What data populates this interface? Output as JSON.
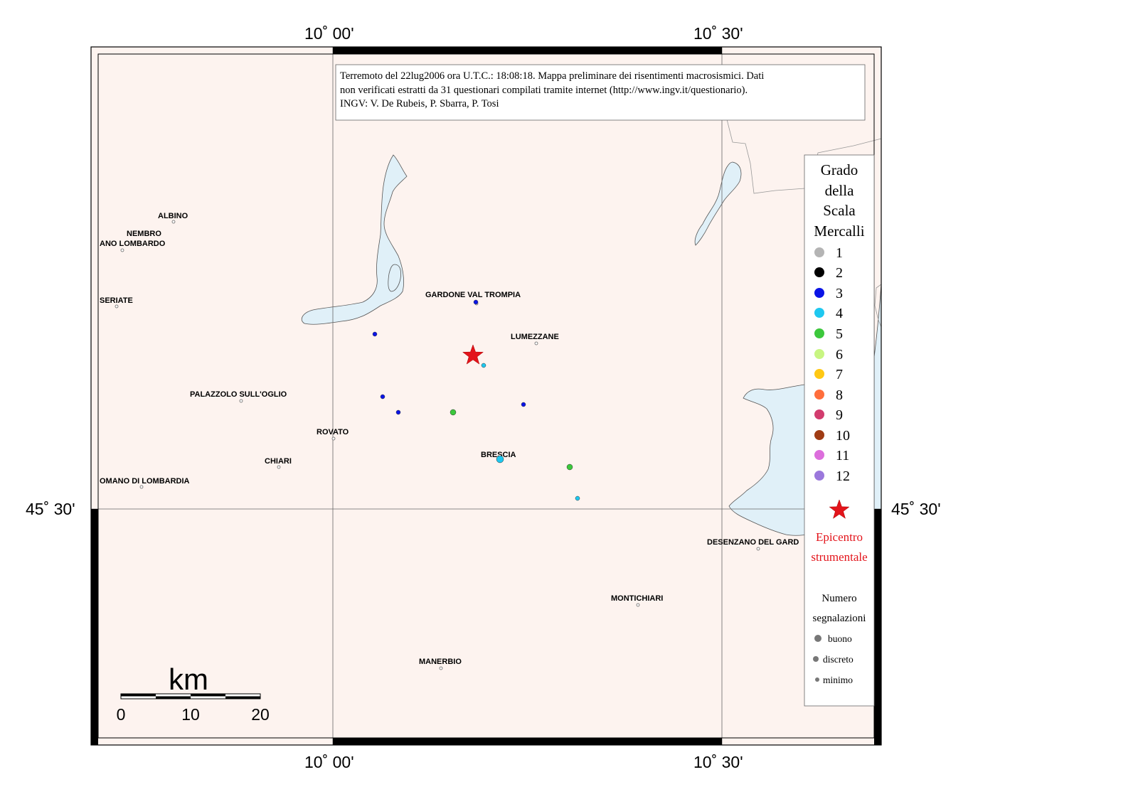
{
  "coords": {
    "lon_left": "10˚ 00'",
    "lon_right": "10˚ 30'",
    "lat": "45˚ 30'"
  },
  "info_box": {
    "line1": "Terremoto del 22lug2006 ora U.T.C.: 18:08:18.  Mappa preliminare dei risentimenti macrosismici.  Dati",
    "line2": "non verificati estratti da 31 questionari compilati tramite internet (http://www.ingv.it/questionario).",
    "line3": "INGV: V.  De Rubeis, P.  Sbarra, P.  Tosi"
  },
  "towns": {
    "albino": "ALBINO",
    "nembro": "NEMBRO",
    "alzano": "ANO LOMBARDO",
    "seriate": "SERIATE",
    "gardone": "GARDONE VAL TROMPIA",
    "lumezzane": "LUMEZZANE",
    "palazzolo": "PALAZZOLO SULL'OGLIO",
    "rovato": "ROVATO",
    "chiari": "CHIARI",
    "brescia": "BRESCIA",
    "romano": "OMANO DI LOMBARDIA",
    "desenzano": "DESENZANO DEL GARD",
    "montichiari": "MONTICHIARI",
    "manerbio": "MANERBIO"
  },
  "legend": {
    "title": [
      "Grado",
      "della",
      "Scala",
      "Mercalli"
    ],
    "grades": [
      {
        "label": "1",
        "color": "#b4b4b4"
      },
      {
        "label": "2",
        "color": "#000000"
      },
      {
        "label": "3",
        "color": "#0a14e6"
      },
      {
        "label": "4",
        "color": "#1ec8f0"
      },
      {
        "label": "5",
        "color": "#3cc83c"
      },
      {
        "label": "6",
        "color": "#c8f582"
      },
      {
        "label": "7",
        "color": "#ffc814"
      },
      {
        "label": "8",
        "color": "#ff6e3c"
      },
      {
        "label": "9",
        "color": "#d23c6e"
      },
      {
        "label": "10",
        "color": "#a03c14"
      },
      {
        "label": "11",
        "color": "#dc6edc"
      },
      {
        "label": "12",
        "color": "#9b78dc"
      }
    ],
    "epicenter_line1": "Epicentro",
    "epicenter_line2": "strumentale",
    "count_title_line1": "Numero",
    "count_title_line2": "segnalazioni",
    "count_levels": [
      "buono",
      "discreto",
      "minimo"
    ]
  },
  "scale_bar": {
    "unit": "km",
    "ticks": [
      "0",
      "10",
      "20"
    ]
  },
  "colors": {
    "land": "#fdf3ef",
    "water": "#e0f0f8",
    "epicenter": "#e3141b"
  },
  "observations": [
    {
      "grade": 3,
      "count": "minimo"
    },
    {
      "grade": 3,
      "count": "minimo"
    },
    {
      "grade": 4,
      "count": "minimo"
    },
    {
      "grade": 3,
      "count": "minimo"
    },
    {
      "grade": 3,
      "count": "minimo"
    },
    {
      "grade": 3,
      "count": "minimo"
    },
    {
      "grade": 5,
      "count": "discreto"
    },
    {
      "grade": 4,
      "count": "buono"
    },
    {
      "grade": 5,
      "count": "discreto"
    },
    {
      "grade": 4,
      "count": "minimo"
    }
  ]
}
